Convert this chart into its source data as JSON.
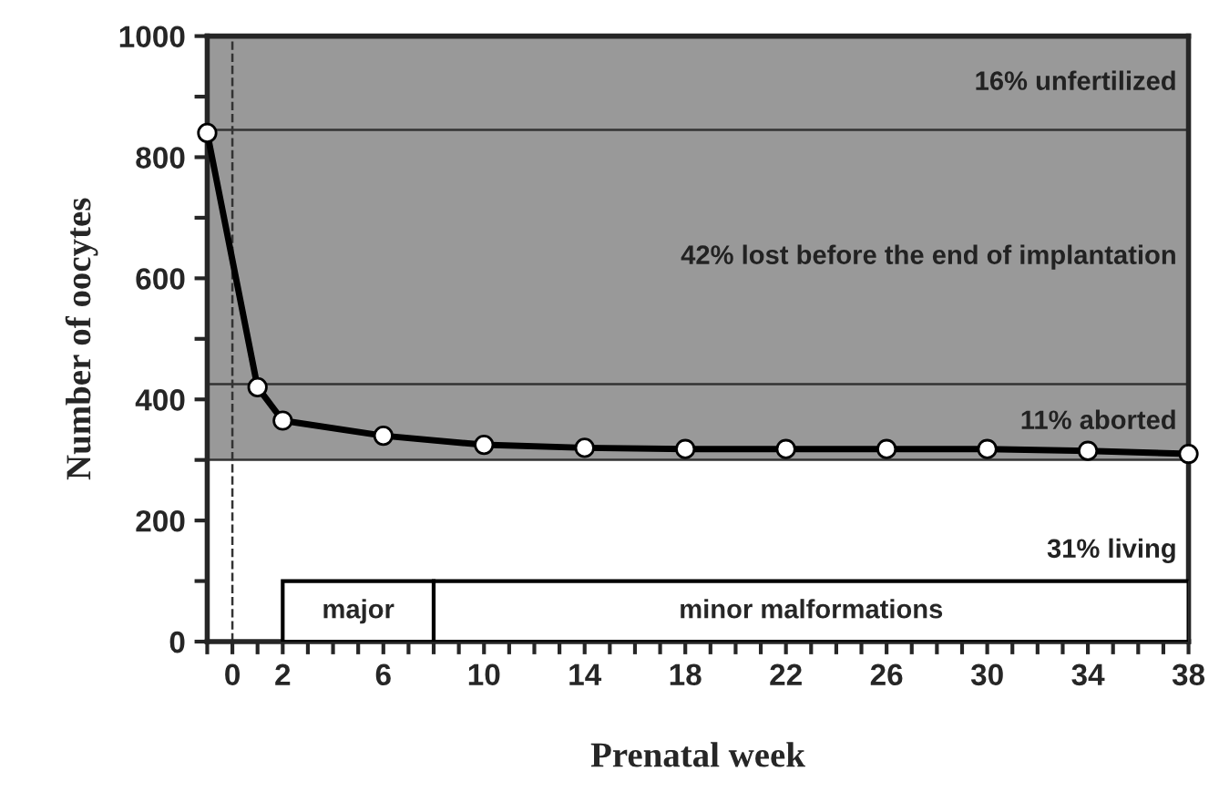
{
  "chart_data": {
    "type": "line",
    "xlabel": "Prenatal week",
    "ylabel": "Number of oocytes",
    "x": [
      -1,
      1,
      2,
      6,
      10,
      14,
      18,
      22,
      26,
      30,
      34,
      38
    ],
    "series": [
      {
        "color": "#000000",
        "values": [
          840,
          420,
          365,
          340,
          325,
          320,
          318,
          318,
          318,
          318,
          315,
          310
        ]
      }
    ],
    "marker": "circle",
    "line_style": "solid",
    "xlim": [
      -1,
      38
    ],
    "xticks": [
      {
        "value": -1,
        "label": null
      },
      0,
      {
        "value": 1,
        "label": null
      },
      2,
      {
        "value": 3,
        "label": null
      },
      {
        "value": 4,
        "label": null
      },
      {
        "value": 5,
        "label": null
      },
      6,
      {
        "value": 7,
        "label": null
      },
      {
        "value": 8,
        "label": null
      },
      {
        "value": 9,
        "label": null
      },
      10,
      {
        "value": 11,
        "label": null
      },
      {
        "value": 12,
        "label": null
      },
      {
        "value": 13,
        "label": null
      },
      14,
      {
        "value": 15,
        "label": null
      },
      {
        "value": 16,
        "label": null
      },
      {
        "value": 17,
        "label": null
      },
      18,
      {
        "value": 19,
        "label": null
      },
      {
        "value": 20,
        "label": null
      },
      {
        "value": 21,
        "label": null
      },
      22,
      {
        "value": 23,
        "label": null
      },
      {
        "value": 24,
        "label": null
      },
      {
        "value": 25,
        "label": null
      },
      26,
      {
        "value": 27,
        "label": null
      },
      {
        "value": 28,
        "label": null
      },
      {
        "value": 29,
        "label": null
      },
      30,
      {
        "value": 31,
        "label": null
      },
      {
        "value": 32,
        "label": null
      },
      {
        "value": 33,
        "label": null
      },
      34,
      {
        "value": 35,
        "label": null
      },
      {
        "value": 36,
        "label": null
      },
      {
        "value": 37,
        "label": null
      },
      38
    ],
    "ylim": [
      0,
      1000
    ],
    "yticks": [
      0,
      {
        "value": 100,
        "label": null
      },
      200,
      {
        "value": 300,
        "label": null
      },
      400,
      {
        "value": 500,
        "label": null
      },
      600,
      {
        "value": 700,
        "label": null
      },
      800,
      {
        "value": 900,
        "label": null
      },
      1000
    ],
    "bands": [
      {
        "axis": "y",
        "from": 845,
        "to": 1000,
        "label": "16% unfertilized",
        "color": "#999999"
      },
      {
        "axis": "y",
        "from": 425,
        "to": 845,
        "label": "42% lost before the end of implantation",
        "color": "#999999"
      },
      {
        "axis": "y",
        "from": 300,
        "to": 425,
        "label": "11% aborted",
        "color": "#999999"
      },
      {
        "axis": "y",
        "from": 0,
        "to": 300,
        "label": "31% living",
        "color": "#ffffff"
      },
      {
        "axis": "x",
        "from": 2,
        "to": 8,
        "label": "major",
        "color": "#ffffff"
      },
      {
        "axis": "x",
        "from": 8,
        "to": 38,
        "label": "minor malformations",
        "color": "#ffffff"
      }
    ],
    "ref_lines": [
      {
        "axis": "x",
        "value": 0,
        "line_style": "dashed",
        "color": "#333333"
      }
    ],
    "grid": false,
    "legend": false
  }
}
